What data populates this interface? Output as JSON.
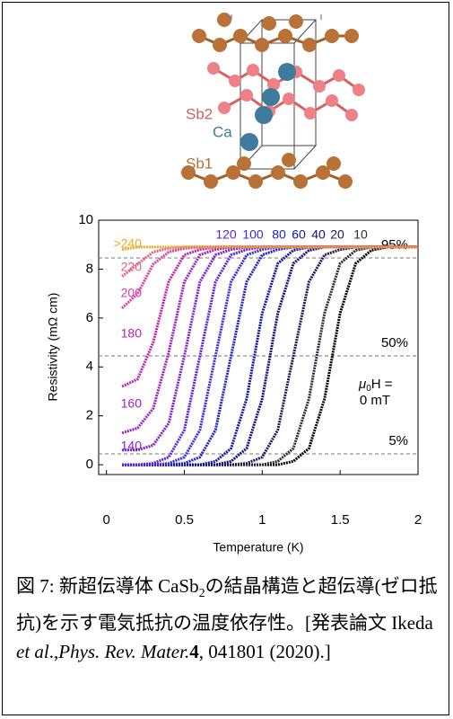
{
  "structure": {
    "labels": [
      "Sb2",
      "Ca",
      "Sb1"
    ]
  },
  "chart_data": {
    "type": "line",
    "x": [
      0.1,
      0.2,
      0.3,
      0.4,
      0.5,
      0.6,
      0.7,
      0.8,
      0.9,
      1.0,
      1.1,
      1.2,
      1.3,
      1.4,
      1.5,
      1.6,
      1.7,
      1.8,
      1.9,
      2.0
    ],
    "xlim": [
      -0.05,
      2.0
    ],
    "xticks": [
      0,
      0.5,
      1,
      1.5,
      2
    ],
    "ylim": [
      -0.4,
      10
    ],
    "yticks": [
      0,
      2,
      4,
      6,
      8,
      10
    ],
    "x_label": "Temperature (K)",
    "y_label": "Resistivity (mΩ cm)",
    "reference_lines": [
      {
        "value": 8.455,
        "label": "95%"
      },
      {
        "value": 4.45,
        "label": "50%"
      },
      {
        "value": 0.445,
        "label": "5%"
      }
    ],
    "annotation": [
      "μ",
      "0",
      "H =",
      "0 mT"
    ],
    "series": [
      {
        "color": "#000000",
        "values": [
          0,
          0,
          0,
          0,
          0,
          0,
          0,
          0,
          0,
          0,
          0,
          0.14,
          0.67,
          2.7,
          6.2,
          8.23,
          8.77,
          8.9,
          8.9,
          8.9
        ]
      },
      {
        "name": "10",
        "color": "#2a2a3a",
        "values": [
          0,
          0,
          0,
          0,
          0,
          0,
          0,
          0,
          0,
          0,
          0.14,
          0.67,
          2.7,
          6.2,
          8.23,
          8.77,
          8.9,
          8.9,
          8.9,
          8.9
        ]
      },
      {
        "name": "20",
        "color": "#18185a",
        "values": [
          0,
          0,
          0,
          0,
          0,
          0,
          0,
          0,
          0.06,
          0.31,
          1.42,
          4.45,
          7.48,
          8.58,
          8.8,
          8.9,
          8.9,
          8.9,
          8.9,
          8.9
        ]
      },
      {
        "name": "40",
        "color": "#10107a",
        "values": [
          0,
          0,
          0,
          0,
          0,
          0,
          0,
          0.14,
          0.67,
          2.7,
          6.2,
          8.23,
          8.77,
          8.9,
          8.9,
          8.9,
          8.9,
          8.9,
          8.9,
          8.9
        ]
      },
      {
        "name": "60",
        "color": "#1414a8",
        "values": [
          0,
          0,
          0,
          0,
          0,
          0,
          0.14,
          0.67,
          2.7,
          6.2,
          8.23,
          8.77,
          8.9,
          8.9,
          8.9,
          8.9,
          8.9,
          8.9,
          8.9,
          8.9
        ]
      },
      {
        "name": "80",
        "color": "#2020c8",
        "values": [
          0,
          0,
          0,
          0,
          0.06,
          0.31,
          1.42,
          4.45,
          7.48,
          8.58,
          8.8,
          8.9,
          8.9,
          8.9,
          8.9,
          8.9,
          8.9,
          8.9,
          8.9,
          8.9
        ]
      },
      {
        "name": "100",
        "color": "#3a2ae0",
        "values": [
          0,
          0,
          0,
          0.06,
          0.31,
          1.42,
          4.45,
          7.48,
          8.58,
          8.8,
          8.9,
          8.9,
          8.9,
          8.9,
          8.9,
          8.9,
          8.9,
          8.9,
          8.9,
          8.9
        ]
      },
      {
        "name": "120",
        "color": "#5a22e0",
        "values": [
          0,
          0,
          0.06,
          0.31,
          1.42,
          4.45,
          7.48,
          8.58,
          8.8,
          8.9,
          8.9,
          8.9,
          8.9,
          8.9,
          8.9,
          8.9,
          8.9,
          8.9,
          8.9,
          8.9
        ]
      },
      {
        "name": "140",
        "color": "#8020d0",
        "values": [
          0.6,
          0.6,
          0.8,
          1.7,
          4.45,
          7.48,
          8.58,
          8.8,
          8.9,
          8.9,
          8.9,
          8.9,
          8.9,
          8.9,
          8.9,
          8.9,
          8.9,
          8.9,
          8.9,
          8.9
        ]
      },
      {
        "name": "160",
        "color": "#a020c0",
        "values": [
          1.3,
          1.5,
          2.3,
          4.6,
          7.48,
          8.58,
          8.8,
          8.9,
          8.9,
          8.9,
          8.9,
          8.9,
          8.9,
          8.9,
          8.9,
          8.9,
          8.9,
          8.9,
          8.9,
          8.9
        ]
      },
      {
        "name": "180",
        "color": "#c020b0",
        "values": [
          3.2,
          3.5,
          5.0,
          7.5,
          8.58,
          8.8,
          8.9,
          8.9,
          8.9,
          8.9,
          8.9,
          8.9,
          8.9,
          8.9,
          8.9,
          8.9,
          8.9,
          8.9,
          8.9,
          8.9
        ]
      },
      {
        "name": "200",
        "color": "#e03aa0",
        "values": [
          6.4,
          7.0,
          8.2,
          8.7,
          8.85,
          8.9,
          8.9,
          8.9,
          8.9,
          8.9,
          8.9,
          8.9,
          8.9,
          8.9,
          8.9,
          8.9,
          8.9,
          8.9,
          8.9,
          8.9
        ]
      },
      {
        "name": "220",
        "color": "#e86080",
        "values": [
          7.7,
          8.2,
          8.7,
          8.85,
          8.9,
          8.9,
          8.9,
          8.9,
          8.9,
          8.9,
          8.9,
          8.9,
          8.9,
          8.9,
          8.9,
          8.9,
          8.9,
          8.9,
          8.9,
          8.9
        ]
      },
      {
        "name": ">240",
        "color": "#f0a828",
        "values": [
          8.8,
          8.9,
          8.9,
          8.9,
          8.9,
          8.9,
          8.9,
          8.9,
          8.9,
          8.9,
          8.9,
          8.9,
          8.9,
          8.9,
          8.9,
          8.9,
          8.9,
          8.9,
          8.9,
          8.9
        ]
      }
    ]
  },
  "caption": {
    "parts": [
      "図 7: 新超伝導体 CaSb",
      "2",
      "の結晶構造と超伝導(ゼロ抵抗)を示す電気抵抗の温度依存性。[発表論文 Ikeda ",
      "et al",
      ".,",
      "Phys. Rev. Mater.",
      "4",
      ", 041801 (2020).]"
    ]
  }
}
